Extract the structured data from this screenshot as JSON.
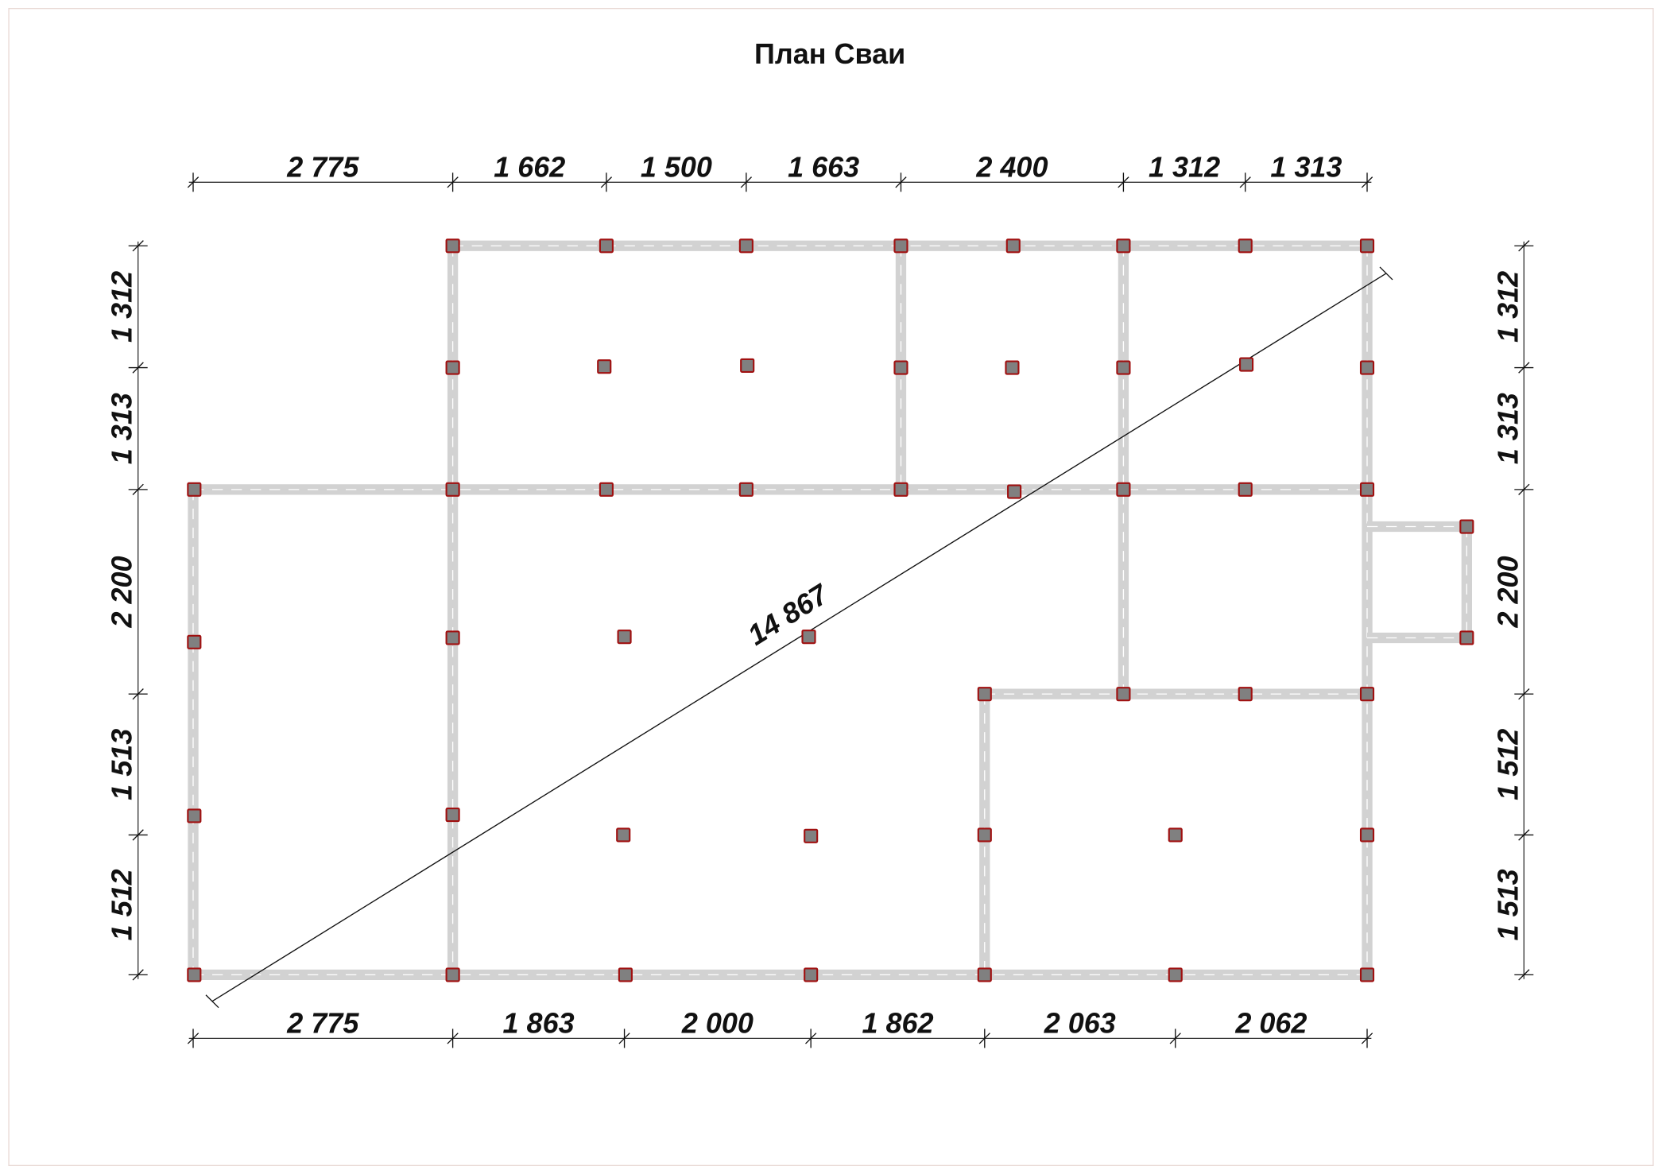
{
  "title": "План Сваи",
  "dimensions": {
    "top": [
      "2 775",
      "1 662",
      "1 500",
      "1 663",
      "2 400",
      "1 312",
      "1 313"
    ],
    "bottom": [
      "2 775",
      "1 863",
      "2 000",
      "1 862",
      "2 063",
      "2 062"
    ],
    "left": [
      "1 312",
      "1 313",
      "2 200",
      "1 513",
      "1 512"
    ],
    "right": [
      "1 312",
      "1 313",
      "2 200",
      "1 512",
      "1 513"
    ],
    "diagonal": "14 867"
  },
  "colors": {
    "wall": "#d2d2d2",
    "pile_fill": "#808080",
    "pile_border": "#a01010",
    "frame": "#e8d8d4"
  }
}
